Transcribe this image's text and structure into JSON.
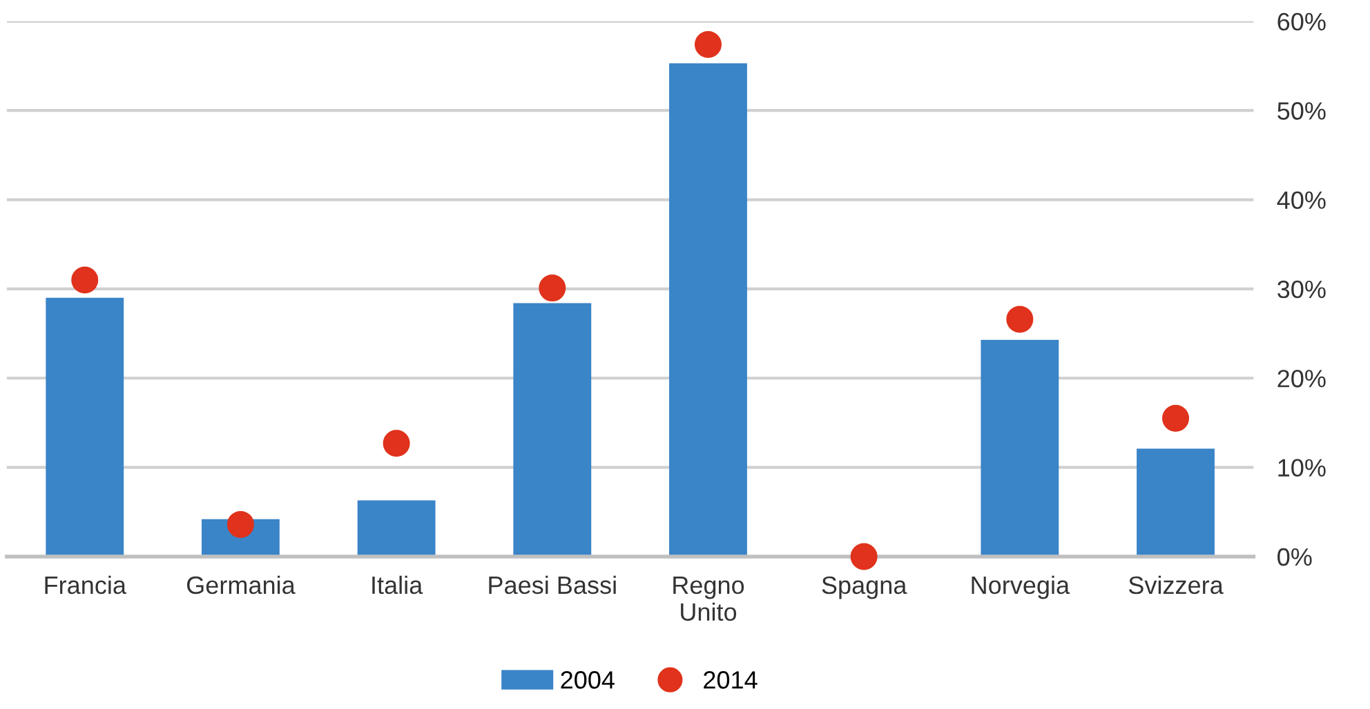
{
  "chart_data": {
    "type": "bar",
    "categories": [
      "Francia",
      "Germania",
      "Italia",
      "Paesi Bassi",
      "Regno\nUnito",
      "Spagna",
      "Norvegia",
      "Svizzera"
    ],
    "series": [
      {
        "name": "2004",
        "color": "#3a84c8",
        "values": [
          29.0,
          4.2,
          6.3,
          28.4,
          55.3,
          0,
          24.3,
          12.1
        ]
      },
      {
        "name": "2014",
        "type": "scatter",
        "color": "#e0321c",
        "marker": "circle",
        "values": [
          31.0,
          3.6,
          12.7,
          30.1,
          57.4,
          0,
          26.6,
          15.5
        ]
      }
    ],
    "ylim": [
      0,
      60
    ],
    "yticks": [
      {
        "value": 0,
        "label": "0%"
      },
      {
        "value": 10,
        "label": "10%"
      },
      {
        "value": 20,
        "label": "20%"
      },
      {
        "value": 30,
        "label": "30%"
      },
      {
        "value": 40,
        "label": "40%"
      },
      {
        "value": 50,
        "label": "50%"
      },
      {
        "value": 60,
        "label": "60%"
      }
    ],
    "grid": "y",
    "legend": "bottom"
  }
}
